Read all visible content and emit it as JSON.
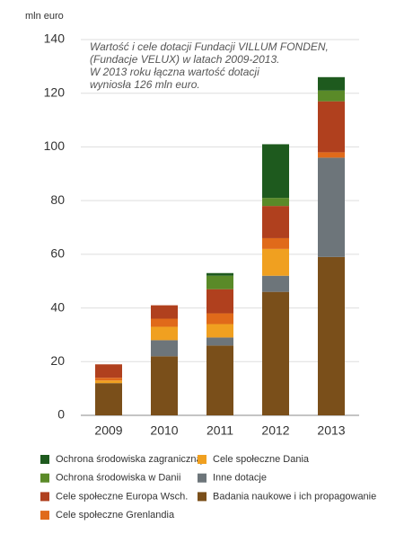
{
  "chart_data": {
    "type": "stacked-bar",
    "title": [
      "Wartość i cele dotacji Fundacji VILLUM FONDEN,",
      "(Fundacje VELUX) w latach 2009-2013.",
      "W 2013 roku łączna wartość dotacji",
      "wyniosła 126 mln euro."
    ],
    "ylabel": "mln euro",
    "categories": [
      "2009",
      "2010",
      "2011",
      "2012",
      "2013"
    ],
    "series": [
      {
        "name": "Badania naukowe i ich propagowanie",
        "color": "#7a4f1a",
        "values": [
          12,
          22,
          26,
          46,
          59
        ]
      },
      {
        "name": "Inne dotacje",
        "color": "#6d757a",
        "values": [
          0,
          6,
          3,
          6,
          37
        ]
      },
      {
        "name": "Cele społeczne Dania",
        "color": "#f0a020",
        "values": [
          1,
          5,
          5,
          10,
          0
        ]
      },
      {
        "name": "Cele społeczne Grenlandia",
        "color": "#e06a1a",
        "values": [
          1,
          3,
          4,
          4,
          2
        ]
      },
      {
        "name": "Cele społeczne Europa Wsch.",
        "color": "#b0401e",
        "values": [
          5,
          5,
          9,
          12,
          19
        ]
      },
      {
        "name": "Ochrona środowiska w Danii",
        "color": "#5a8a28",
        "values": [
          0,
          0,
          5,
          3,
          4
        ]
      },
      {
        "name": "Ochrona środowiska zagraniczną",
        "color": "#1e5a1e",
        "values": [
          0,
          0,
          1,
          20,
          5
        ]
      }
    ],
    "ylim": [
      0,
      140
    ],
    "yticks": [
      0,
      20,
      40,
      60,
      80,
      100,
      120,
      140
    ],
    "grid": true
  }
}
